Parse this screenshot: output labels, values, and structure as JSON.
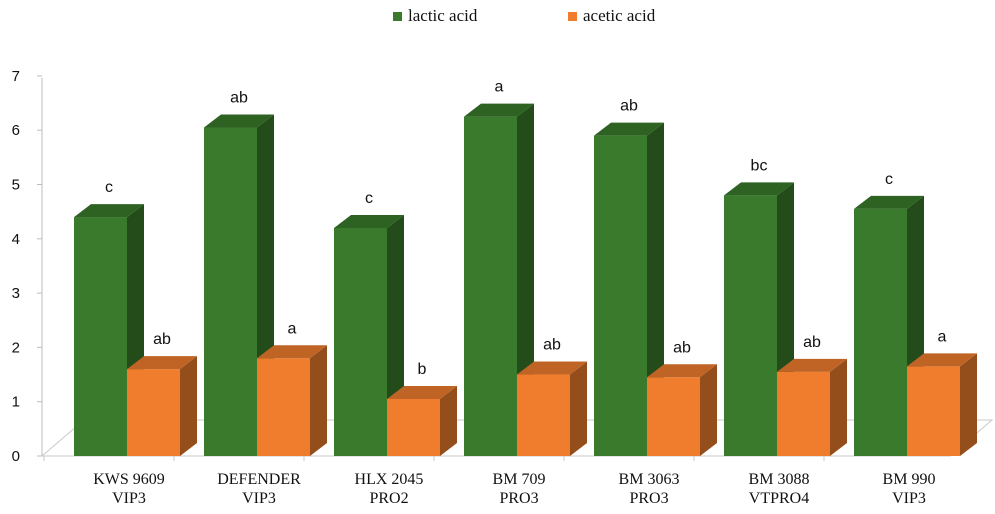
{
  "chart_data": {
    "type": "bar",
    "style": "3d-clustered-column",
    "categories": [
      [
        "KWS 9609",
        "VIP3"
      ],
      [
        "DEFENDER",
        "VIP3"
      ],
      [
        "HLX 2045",
        "PRO2"
      ],
      [
        "BM 709",
        "PRO3"
      ],
      [
        "BM 3063",
        "PRO3"
      ],
      [
        "BM 3088",
        "VTPRO4"
      ],
      [
        "BM 990",
        "VIP3"
      ]
    ],
    "series": [
      {
        "name": "lactic acid",
        "color": "#3a7a2c",
        "values": [
          4.4,
          6.05,
          4.2,
          6.25,
          5.9,
          4.8,
          4.55
        ],
        "labels": [
          "c",
          "ab",
          "c",
          "a",
          "ab",
          "bc",
          "c"
        ]
      },
      {
        "name": "acetic acid",
        "color": "#ef7d2d",
        "values": [
          1.6,
          1.8,
          1.05,
          1.5,
          1.45,
          1.55,
          1.65
        ],
        "labels": [
          "ab",
          "a",
          "b",
          "ab",
          "ab",
          "ab",
          "a"
        ]
      }
    ],
    "ylim": [
      0,
      7
    ],
    "yticks": [
      "0",
      "1",
      "2",
      "3",
      "4",
      "5",
      "6",
      "7"
    ],
    "legend_position": "top-center",
    "grid": false
  }
}
